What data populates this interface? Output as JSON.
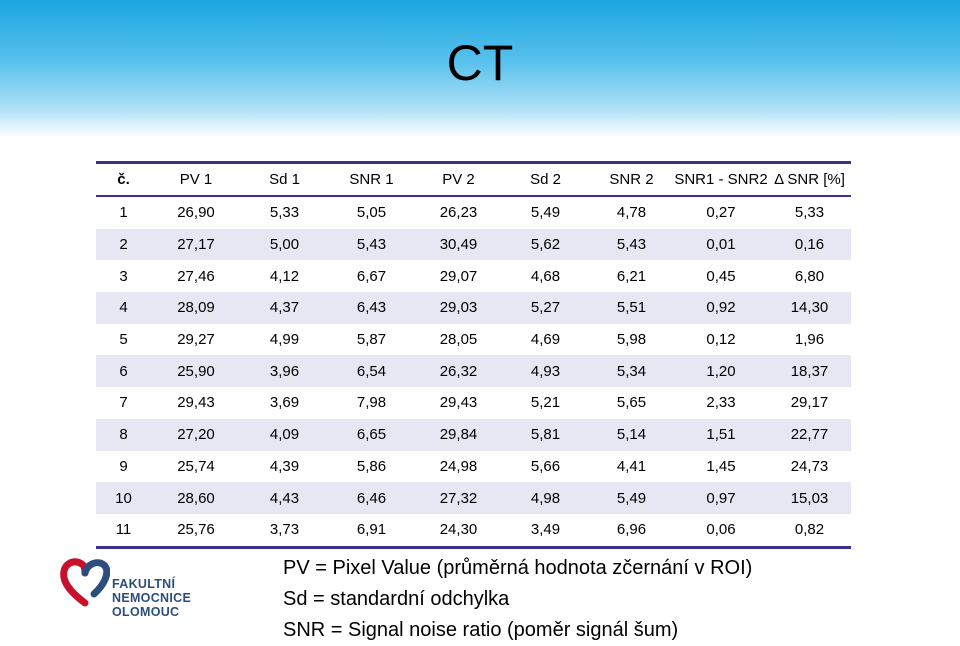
{
  "slide": {
    "title": "CT"
  },
  "table": {
    "headers": [
      "č.",
      "PV 1",
      "Sd 1",
      "SNR 1",
      "PV 2",
      "Sd 2",
      "SNR 2",
      "SNR1 - SNR2",
      "Δ SNR [%]"
    ],
    "rows": [
      [
        "1",
        "26,90",
        "5,33",
        "5,05",
        "26,23",
        "5,49",
        "4,78",
        "0,27",
        "5,33"
      ],
      [
        "2",
        "27,17",
        "5,00",
        "5,43",
        "30,49",
        "5,62",
        "5,43",
        "0,01",
        "0,16"
      ],
      [
        "3",
        "27,46",
        "4,12",
        "6,67",
        "29,07",
        "4,68",
        "6,21",
        "0,45",
        "6,80"
      ],
      [
        "4",
        "28,09",
        "4,37",
        "6,43",
        "29,03",
        "5,27",
        "5,51",
        "0,92",
        "14,30"
      ],
      [
        "5",
        "29,27",
        "4,99",
        "5,87",
        "28,05",
        "4,69",
        "5,98",
        "0,12",
        "1,96"
      ],
      [
        "6",
        "25,90",
        "3,96",
        "6,54",
        "26,32",
        "4,93",
        "5,34",
        "1,20",
        "18,37"
      ],
      [
        "7",
        "29,43",
        "3,69",
        "7,98",
        "29,43",
        "5,21",
        "5,65",
        "2,33",
        "29,17"
      ],
      [
        "8",
        "27,20",
        "4,09",
        "6,65",
        "29,84",
        "5,81",
        "5,14",
        "1,51",
        "22,77"
      ],
      [
        "9",
        "25,74",
        "4,39",
        "5,86",
        "24,98",
        "5,66",
        "4,41",
        "1,45",
        "24,73"
      ],
      [
        "10",
        "28,60",
        "4,43",
        "6,46",
        "27,32",
        "4,98",
        "5,49",
        "0,97",
        "15,03"
      ],
      [
        "11",
        "25,76",
        "3,73",
        "6,91",
        "24,30",
        "3,49",
        "6,96",
        "0,06",
        "0,82"
      ]
    ]
  },
  "legend": [
    "PV = Pixel Value (průměrná hodnota zčernání v ROI)",
    "Sd = standardní odchylka",
    "SNR = Signal noise ratio (poměr signál šum)"
  ],
  "logo": {
    "line1": "FAKULTNÍ NEMOCNICE",
    "line2": "OLOMOUC",
    "colors": {
      "red": "#c8102e",
      "blue": "#2d4d7c"
    }
  },
  "colors": {
    "header_band": "#1aa6e0",
    "table_rule": "#3b2f8f",
    "table_stripe": "#e7e7f3"
  }
}
